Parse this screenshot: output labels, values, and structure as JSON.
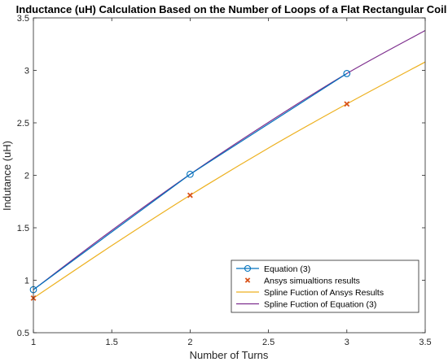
{
  "chart_data": {
    "type": "line",
    "title": "Inductance (uH) Calculation Based on the Number of Loops of a Flat Rectangular Coil",
    "xlabel": "Number of Turns",
    "ylabel": "Indutance (uH)",
    "xlim": [
      1,
      3.5
    ],
    "ylim": [
      0.5,
      3.5
    ],
    "xticks": [
      1,
      1.5,
      2,
      2.5,
      3,
      3.5
    ],
    "yticks": [
      0.5,
      1,
      1.5,
      2,
      2.5,
      3,
      3.5
    ],
    "grid": false,
    "legend_position": "bottom-right",
    "series": [
      {
        "name": "Equation (3)",
        "style": "line-circle-markers",
        "color": "#0072BD",
        "x": [
          1,
          2,
          3
        ],
        "y": [
          0.91,
          2.01,
          2.97
        ]
      },
      {
        "name": "Ansys simualtions results",
        "style": "x-markers",
        "color": "#D95319",
        "x": [
          1,
          2,
          3
        ],
        "y": [
          0.83,
          1.81,
          2.68
        ]
      },
      {
        "name": "Spline Fuction of Ansys Results",
        "style": "line",
        "color": "#EDB120",
        "x": [
          1,
          1.5,
          2,
          2.5,
          3,
          3.5
        ],
        "y": [
          0.83,
          1.33,
          1.81,
          2.26,
          2.68,
          3.08
        ]
      },
      {
        "name": "Spline Fuction of Equation (3)",
        "style": "line",
        "color": "#7E2F8E",
        "x": [
          1,
          1.5,
          2,
          2.5,
          3,
          3.5
        ],
        "y": [
          0.91,
          1.475,
          2.01,
          2.505,
          2.97,
          3.38
        ]
      }
    ]
  }
}
